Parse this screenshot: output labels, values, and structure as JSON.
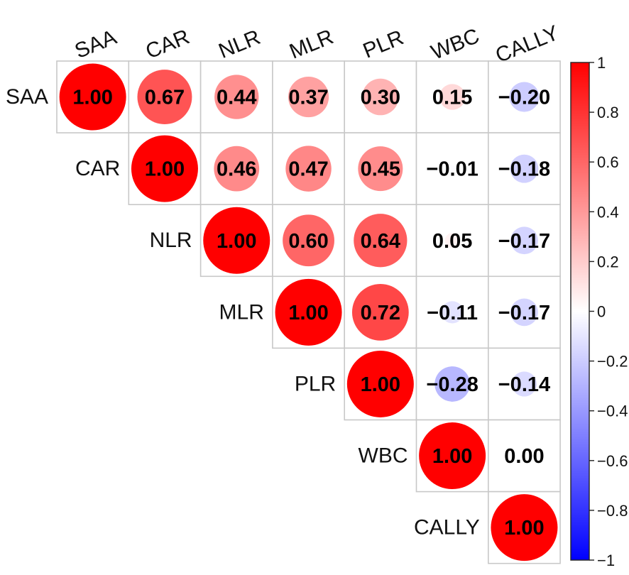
{
  "chart_data": {
    "type": "heatmap",
    "variables": [
      "SAA",
      "CAR",
      "NLR",
      "MLR",
      "PLR",
      "WBC",
      "CALLY"
    ],
    "matrix_upper": [
      [
        1.0,
        0.67,
        0.44,
        0.37,
        0.3,
        0.15,
        -0.2
      ],
      [
        null,
        1.0,
        0.46,
        0.47,
        0.45,
        -0.01,
        -0.18
      ],
      [
        null,
        null,
        1.0,
        0.6,
        0.64,
        0.05,
        -0.17
      ],
      [
        null,
        null,
        null,
        1.0,
        0.72,
        -0.11,
        -0.17
      ],
      [
        null,
        null,
        null,
        null,
        1.0,
        -0.28,
        -0.14
      ],
      [
        null,
        null,
        null,
        null,
        null,
        1.0,
        0.0
      ],
      [
        null,
        null,
        null,
        null,
        null,
        null,
        1.0
      ]
    ],
    "value_labels": [
      [
        "1.00",
        "0.67",
        "0.44",
        "0.37",
        "0.30",
        "0.15",
        "−0.20"
      ],
      [
        null,
        "1.00",
        "0.46",
        "0.47",
        "0.45",
        "−0.01",
        "−0.18"
      ],
      [
        null,
        null,
        "1.00",
        "0.60",
        "0.64",
        "0.05",
        "−0.17"
      ],
      [
        null,
        null,
        null,
        "1.00",
        "0.72",
        "−0.11",
        "−0.17"
      ],
      [
        null,
        null,
        null,
        null,
        "1.00",
        "−0.28",
        "−0.14"
      ],
      [
        null,
        null,
        null,
        null,
        null,
        "1.00",
        "0.00"
      ],
      [
        null,
        null,
        null,
        null,
        null,
        null,
        "1.00"
      ]
    ],
    "marker": "circle",
    "marker_size_encodes": "absolute value",
    "triangle": "upper",
    "colorbar": {
      "range": [
        -1,
        1
      ],
      "ticks": [
        "1",
        "0.8",
        "0.6",
        "0.4",
        "0.2",
        "0",
        "−0.2",
        "−0.4",
        "−0.6",
        "−0.8",
        "−1"
      ],
      "colors": {
        "low": "#0000ff",
        "mid": "#ffffff",
        "high": "#ff0000"
      },
      "position": "right"
    },
    "column_labels_rotation": "diagonal"
  }
}
